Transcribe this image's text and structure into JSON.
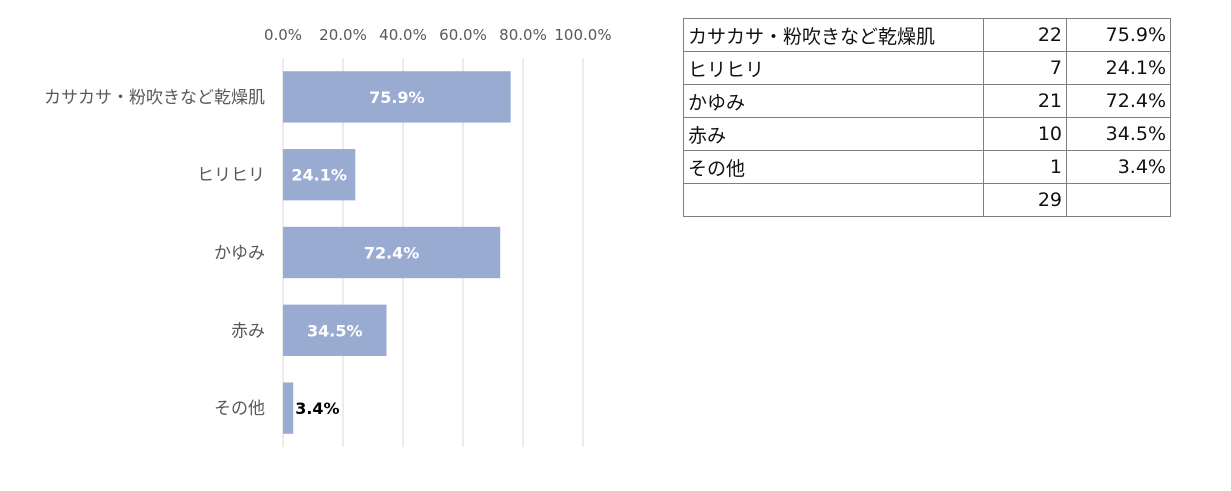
{
  "chart_data": {
    "type": "bar",
    "orientation": "horizontal",
    "categories": [
      "カサカサ・粉吹きなど乾燥肌",
      "ヒリヒリ",
      "かゆみ",
      "赤み",
      "その他"
    ],
    "values": [
      75.9,
      24.1,
      72.4,
      34.5,
      3.4
    ],
    "data_labels": [
      "75.9%",
      "24.1%",
      "72.4%",
      "34.5%",
      "3.4%"
    ],
    "x_ticks": [
      "0.0%",
      "20.0%",
      "40.0%",
      "60.0%",
      "80.0%",
      "100.0%"
    ],
    "x_tick_values": [
      0,
      20,
      40,
      60,
      80,
      100
    ],
    "xlim": [
      0,
      100
    ],
    "x_axis_position": "top",
    "grid": true,
    "legend": "none",
    "bar_color": "#9aabd2",
    "title": "",
    "xlabel": "",
    "ylabel": ""
  },
  "table": {
    "rows": [
      {
        "name": "カサカサ・粉吹きなど乾燥肌",
        "count": "22",
        "pct": "75.9%"
      },
      {
        "name": "ヒリヒリ",
        "count": "7",
        "pct": "24.1%"
      },
      {
        "name": "かゆみ",
        "count": "21",
        "pct": "72.4%"
      },
      {
        "name": "赤み",
        "count": "10",
        "pct": "34.5%"
      },
      {
        "name": "その他",
        "count": "1",
        "pct": "3.4%"
      }
    ],
    "total": {
      "name": "",
      "count": "29",
      "pct": ""
    }
  }
}
